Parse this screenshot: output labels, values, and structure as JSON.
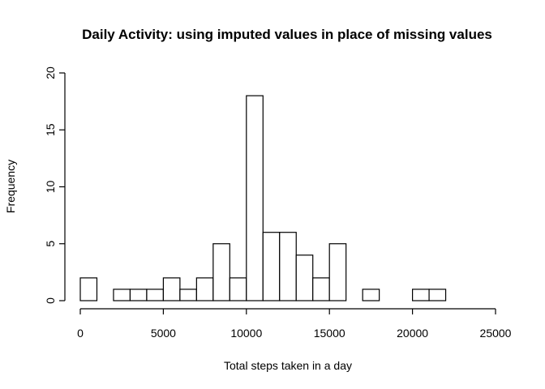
{
  "chart_data": {
    "type": "bar",
    "title": "Daily Activity: using imputed values in place of missing values",
    "xlabel": "Total steps taken in a day",
    "ylabel": "Frequency",
    "bin_width": 1000,
    "bins_start": [
      0,
      1000,
      2000,
      3000,
      4000,
      5000,
      6000,
      7000,
      8000,
      9000,
      10000,
      11000,
      12000,
      13000,
      14000,
      15000,
      16000,
      17000,
      18000,
      19000,
      20000,
      21000
    ],
    "values": [
      2,
      0,
      1,
      1,
      1,
      2,
      1,
      2,
      5,
      2,
      18,
      6,
      6,
      4,
      2,
      5,
      0,
      1,
      0,
      0,
      1,
      1
    ],
    "xlim": [
      0,
      25000
    ],
    "ylim": [
      0,
      20
    ],
    "xticks": [
      "0",
      "5000",
      "10000",
      "15000",
      "20000",
      "25000"
    ],
    "yticks": [
      "0",
      "5",
      "10",
      "15",
      "20"
    ],
    "grid": false,
    "legend": "none"
  }
}
